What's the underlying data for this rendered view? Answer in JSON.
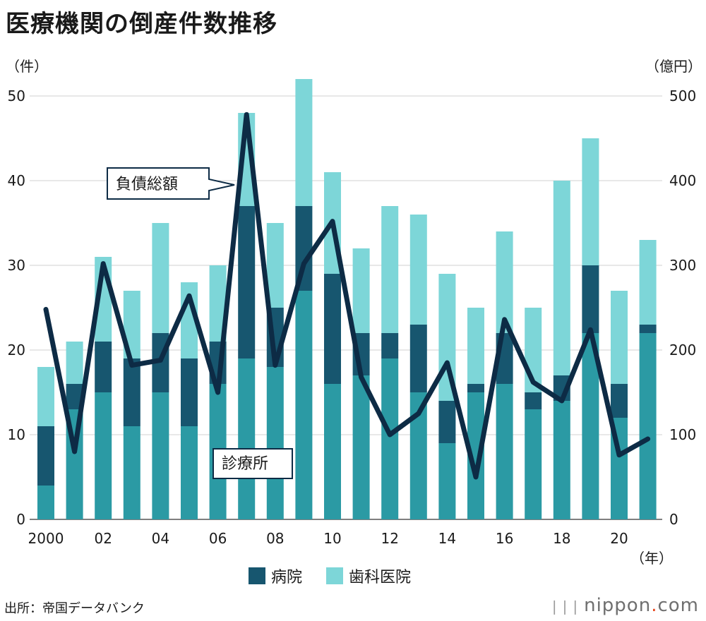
{
  "title": "医療機関の倒産件数推移",
  "left_unit": "（件）",
  "right_unit": "（億円）",
  "x_unit": "（年）",
  "legend": {
    "hospital": "病院",
    "dental": "歯科医院"
  },
  "source": "出所：帝国データバンク",
  "brand": {
    "name": "nippon",
    "dot": ".",
    "suffix": "com"
  },
  "colors": {
    "clinic": "#2b9aa4",
    "hospital": "#17566f",
    "dental": "#7dd6d8",
    "debt_line": "#0d2b45",
    "grid": "#d0d0d0"
  },
  "chart_data": {
    "type": "bar",
    "stacked": true,
    "title": "医療機関の倒産件数推移",
    "categories": [
      "2000",
      "01",
      "02",
      "03",
      "04",
      "05",
      "06",
      "07",
      "08",
      "09",
      "10",
      "11",
      "12",
      "13",
      "14",
      "15",
      "16",
      "17",
      "18",
      "19",
      "20",
      "21"
    ],
    "x_tick_labels": [
      "2000",
      "",
      "02",
      "",
      "04",
      "",
      "06",
      "",
      "08",
      "",
      "10",
      "",
      "12",
      "",
      "14",
      "",
      "16",
      "",
      "18",
      "",
      "20",
      ""
    ],
    "series": [
      {
        "name": "診療所",
        "values": [
          4,
          13,
          15,
          11,
          15,
          11,
          16,
          19,
          18,
          27,
          16,
          17,
          19,
          15,
          9,
          15,
          16,
          13,
          14,
          22,
          12,
          22
        ]
      },
      {
        "name": "病院",
        "values": [
          7,
          3,
          6,
          8,
          7,
          8,
          5,
          18,
          7,
          10,
          13,
          5,
          3,
          8,
          5,
          1,
          6,
          2,
          3,
          8,
          4,
          1
        ]
      },
      {
        "name": "歯科医院",
        "values": [
          7,
          5,
          10,
          8,
          13,
          9,
          9,
          11,
          10,
          15,
          12,
          10,
          15,
          13,
          15,
          9,
          12,
          10,
          23,
          15,
          11,
          10
        ]
      }
    ],
    "line_series": {
      "name": "負債総額",
      "axis": "right",
      "values": [
        248,
        80,
        302,
        182,
        188,
        264,
        150,
        478,
        182,
        302,
        352,
        168,
        100,
        125,
        185,
        50,
        236,
        162,
        140,
        224,
        76,
        95
      ]
    },
    "annotations": {
      "debt_label": "負債総額",
      "clinic_label": "診療所"
    },
    "y_left": {
      "label": "件",
      "range": [
        0,
        50
      ],
      "ticks": [
        0,
        10,
        20,
        30,
        40,
        50
      ]
    },
    "y_right": {
      "label": "億円",
      "range": [
        0,
        500
      ],
      "ticks": [
        0,
        100,
        200,
        300,
        400,
        500
      ]
    },
    "grid": true,
    "legend_position": "bottom"
  }
}
